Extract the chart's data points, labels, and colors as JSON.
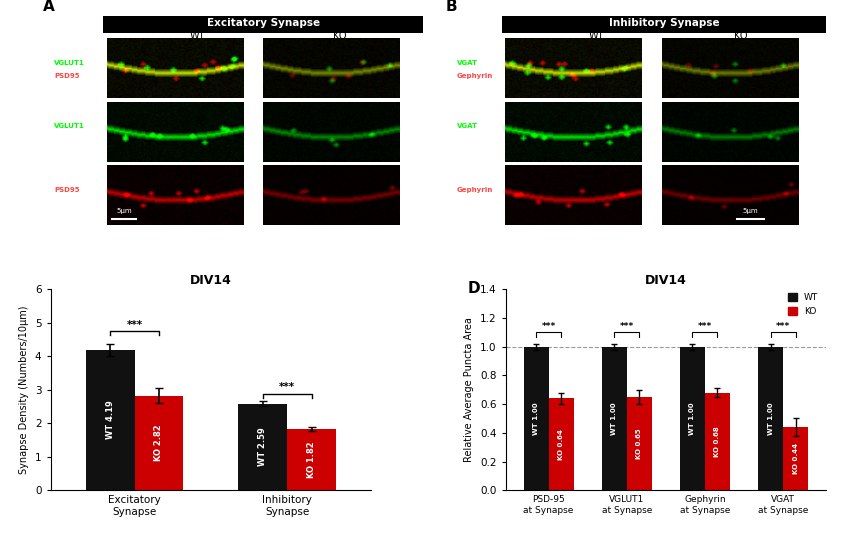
{
  "panel_A": {
    "title": "Excitatory Synapse",
    "wt_label": "WT",
    "ko_label": "KO",
    "row_labels": [
      [
        "VGLUT1",
        "green"
      ],
      [
        "PSD95",
        "red"
      ]
    ],
    "row1_label": "VGLUT1",
    "row2_label": "PSD95",
    "scale_bar": "5μm"
  },
  "panel_B": {
    "title": "Inhibitory Synapse",
    "wt_label": "WT",
    "ko_label": "KO",
    "row1_label": "VGAT",
    "row2_label": "Gephyrin",
    "scale_bar": "5μm"
  },
  "panel_C": {
    "title": "DIV14",
    "ylabel": "Synapse Density (Numbers/10μm)",
    "categories": [
      "Excitatory\nSynapse",
      "Inhibitory\nSynapse"
    ],
    "wt_values": [
      4.19,
      2.59
    ],
    "ko_values": [
      2.82,
      1.82
    ],
    "wt_errors": [
      0.18,
      0.08
    ],
    "ko_errors": [
      0.22,
      0.06
    ],
    "wt_color": "#111111",
    "ko_color": "#cc0000",
    "bar_labels_wt": [
      "WT 4.19",
      "WT 2.59"
    ],
    "bar_labels_ko": [
      "KO 2.82",
      "KO 1.82"
    ],
    "ylim": [
      0,
      6
    ],
    "yticks": [
      0,
      1,
      2,
      3,
      4,
      5,
      6
    ],
    "sig_label": "***"
  },
  "panel_D": {
    "title": "DIV14",
    "ylabel": "Relative Average Puncta Area",
    "categories": [
      "PSD-95\nat Synapse",
      "VGLUT1\nat Synapse",
      "Gephyrin\nat Synapse",
      "VGAT\nat Synapse"
    ],
    "wt_values": [
      1.0,
      1.0,
      1.0,
      1.0
    ],
    "ko_values": [
      0.64,
      0.65,
      0.68,
      0.44
    ],
    "wt_errors": [
      0.02,
      0.02,
      0.02,
      0.02
    ],
    "ko_errors": [
      0.04,
      0.05,
      0.03,
      0.06
    ],
    "wt_color": "#111111",
    "ko_color": "#cc0000",
    "bar_labels_wt": [
      "WT 1.00",
      "WT 1.00",
      "WT 1.00",
      "WT 1.00"
    ],
    "bar_labels_ko": [
      "KO 0.64",
      "KO 0.65",
      "KO 0.68",
      "KO 0.44"
    ],
    "ylim": [
      0,
      1.4
    ],
    "yticks": [
      0,
      0.2,
      0.4,
      0.6,
      0.8,
      1.0,
      1.2,
      1.4
    ],
    "dashed_line_y": 1.0,
    "sig_label": "***"
  }
}
